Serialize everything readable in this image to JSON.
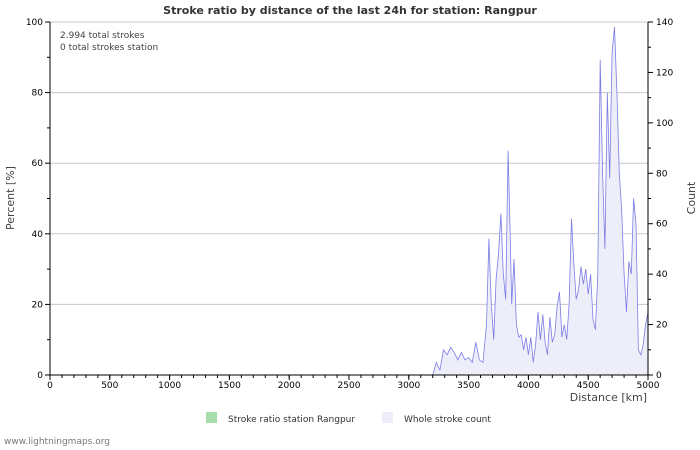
{
  "chart_data": {
    "type": "area",
    "title": "Stroke ratio by distance of the last 24h for station: Rangpur",
    "annotations": [
      "2.994 total strokes",
      "0 total strokes station"
    ],
    "xlabel": "Distance   [km]",
    "ylabel_left": "Percent   [%]",
    "ylabel_right": "Count",
    "xlim": [
      0,
      5000
    ],
    "ylim_left": [
      0,
      100
    ],
    "ylim_right": [
      0,
      140
    ],
    "xticks": [
      0,
      500,
      1000,
      1500,
      2000,
      2500,
      3000,
      3500,
      4000,
      4500,
      5000
    ],
    "yticks_left": [
      0,
      20,
      40,
      60,
      80,
      100
    ],
    "yticks_right": [
      0,
      20,
      40,
      60,
      80,
      100,
      120,
      140
    ],
    "grid": true,
    "legend": [
      {
        "label": "Stroke ratio station Rangpur",
        "color": "#a8dca8"
      },
      {
        "label": "Whole stroke count",
        "color": "#eeeefb"
      }
    ],
    "series": [
      {
        "name": "Stroke ratio station Rangpur",
        "axis": "left",
        "x": [
          0,
          5000
        ],
        "values": [
          0,
          0
        ]
      },
      {
        "name": "Whole stroke count",
        "axis": "right",
        "x": [
          0,
          3200,
          3230,
          3260,
          3290,
          3320,
          3350,
          3380,
          3410,
          3440,
          3470,
          3500,
          3530,
          3560,
          3590,
          3620,
          3650,
          3670,
          3690,
          3710,
          3730,
          3750,
          3770,
          3790,
          3810,
          3830,
          3845,
          3860,
          3880,
          3900,
          3920,
          3940,
          3960,
          3980,
          4000,
          4020,
          4040,
          4060,
          4080,
          4100,
          4120,
          4140,
          4160,
          4180,
          4200,
          4220,
          4240,
          4260,
          4280,
          4300,
          4320,
          4340,
          4360,
          4380,
          4400,
          4420,
          4440,
          4460,
          4480,
          4500,
          4520,
          4540,
          4560,
          4580,
          4600,
          4620,
          4640,
          4660,
          4680,
          4700,
          4720,
          4740,
          4760,
          4780,
          4800,
          4820,
          4840,
          4860,
          4880,
          4900,
          4920,
          4940,
          4960,
          4980,
          5000
        ],
        "values": [
          0,
          0,
          5,
          2,
          10,
          8,
          11,
          9,
          6,
          9,
          6,
          7,
          5,
          13,
          6,
          5,
          20,
          54,
          28,
          14,
          38,
          48,
          64,
          40,
          30,
          89,
          60,
          28,
          46,
          20,
          15,
          16,
          10,
          15,
          8,
          15,
          5,
          12,
          25,
          14,
          24,
          13,
          8,
          23,
          13,
          16,
          27,
          33,
          15,
          20,
          14,
          28,
          62,
          44,
          30,
          34,
          43,
          36,
          42,
          32,
          40,
          22,
          18,
          40,
          125,
          80,
          50,
          112,
          78,
          128,
          138,
          112,
          80,
          65,
          40,
          25,
          45,
          40,
          70,
          60,
          10,
          8,
          12,
          20,
          25
        ]
      }
    ]
  }
}
